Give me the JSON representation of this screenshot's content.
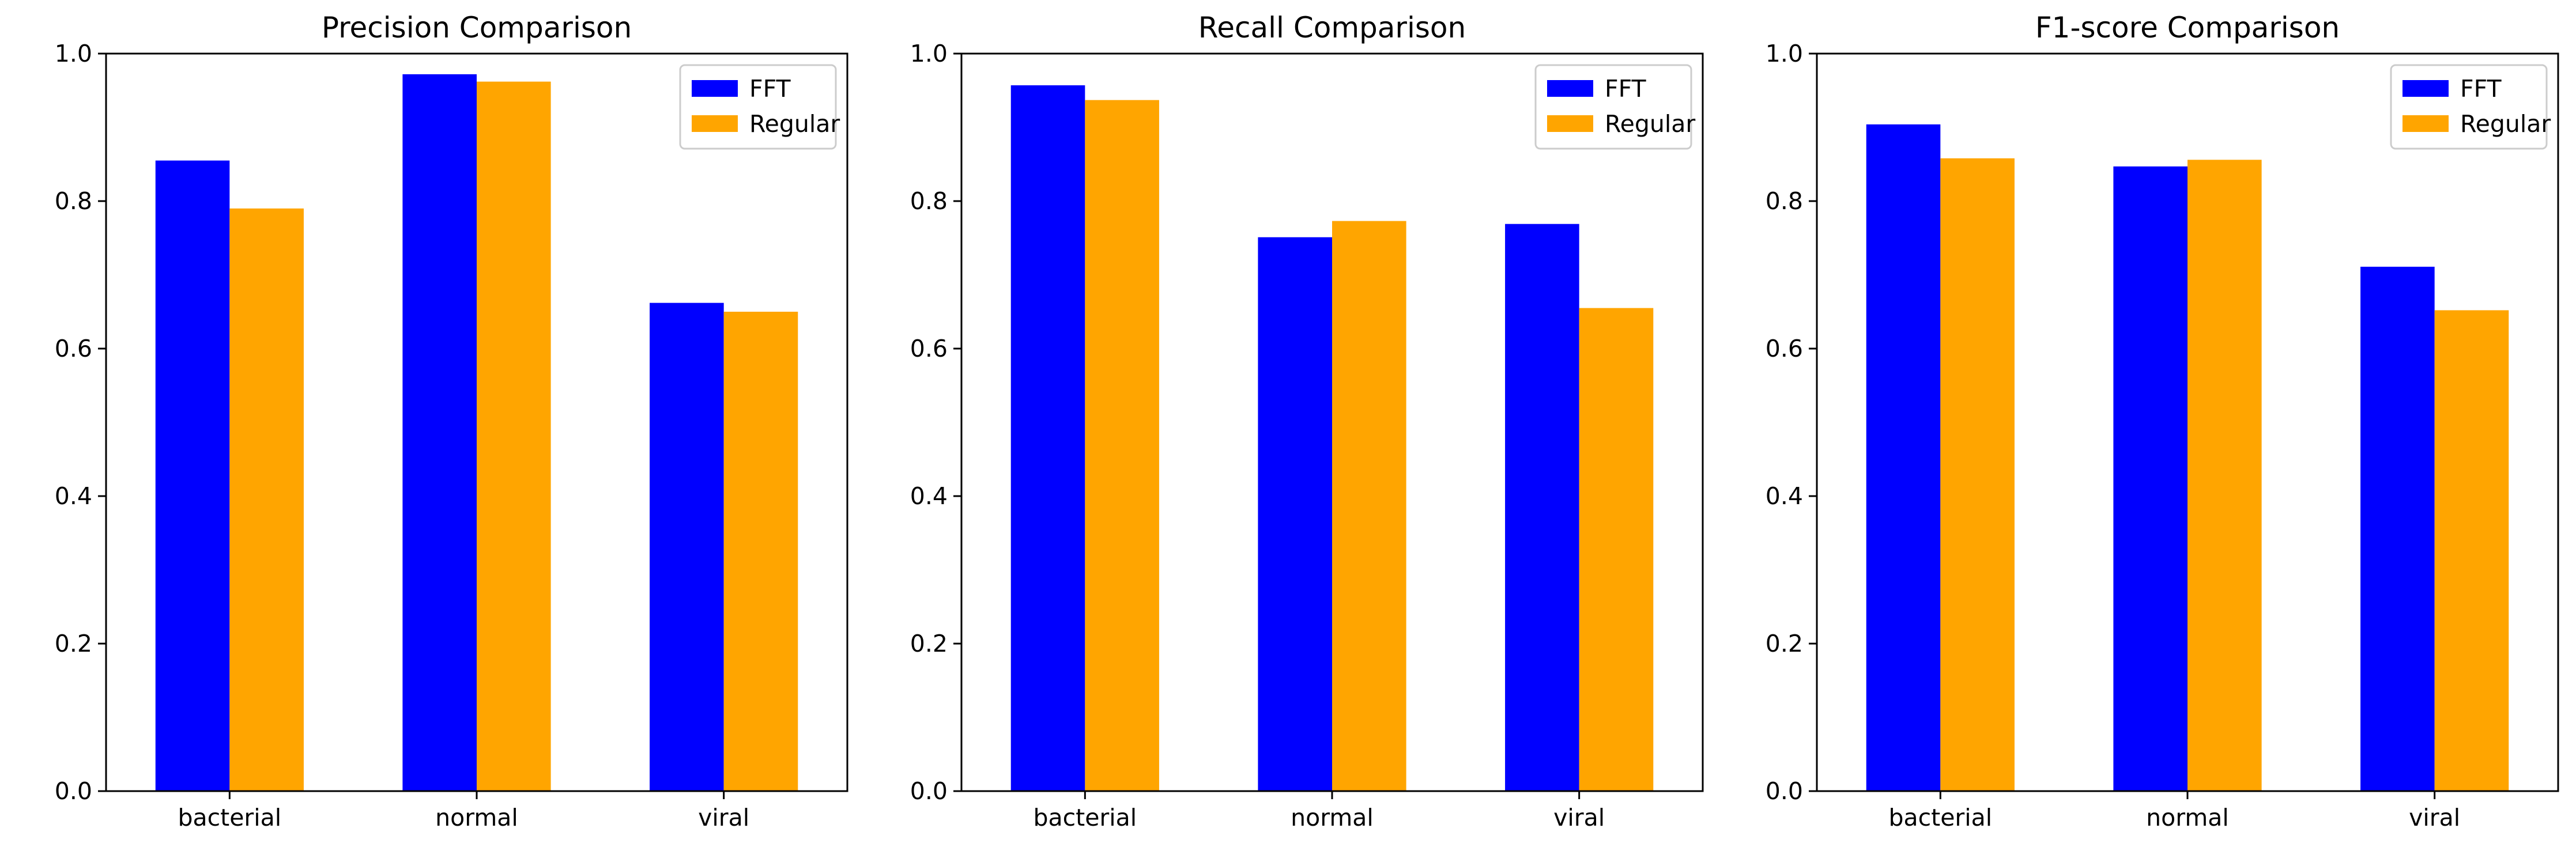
{
  "chart_data": [
    {
      "type": "bar",
      "title": "Precision Comparison",
      "categories": [
        "bacterial",
        "normal",
        "viral"
      ],
      "series": [
        {
          "name": "FFT",
          "color": "#0000ff",
          "values": [
            0.855,
            0.972,
            0.662
          ]
        },
        {
          "name": "Regular",
          "color": "#ffa500",
          "values": [
            0.79,
            0.962,
            0.65
          ]
        }
      ],
      "ylim": [
        0,
        1
      ],
      "yticks": [
        "0.0",
        "0.2",
        "0.4",
        "0.6",
        "0.8",
        "1.0"
      ],
      "legend": "top-right",
      "grid": false
    },
    {
      "type": "bar",
      "title": "Recall Comparison",
      "categories": [
        "bacterial",
        "normal",
        "viral"
      ],
      "series": [
        {
          "name": "FFT",
          "color": "#0000ff",
          "values": [
            0.957,
            0.751,
            0.769
          ]
        },
        {
          "name": "Regular",
          "color": "#ffa500",
          "values": [
            0.937,
            0.773,
            0.655
          ]
        }
      ],
      "ylim": [
        0,
        1
      ],
      "yticks": [
        "0.0",
        "0.2",
        "0.4",
        "0.6",
        "0.8",
        "1.0"
      ],
      "legend": "top-right",
      "grid": false
    },
    {
      "type": "bar",
      "title": "F1-score Comparison",
      "categories": [
        "bacterial",
        "normal",
        "viral"
      ],
      "series": [
        {
          "name": "FFT",
          "color": "#0000ff",
          "values": [
            0.904,
            0.847,
            0.711
          ]
        },
        {
          "name": "Regular",
          "color": "#ffa500",
          "values": [
            0.858,
            0.856,
            0.652
          ]
        }
      ],
      "ylim": [
        0,
        1
      ],
      "yticks": [
        "0.0",
        "0.2",
        "0.4",
        "0.6",
        "0.8",
        "1.0"
      ],
      "legend": "top-right",
      "grid": false
    }
  ]
}
